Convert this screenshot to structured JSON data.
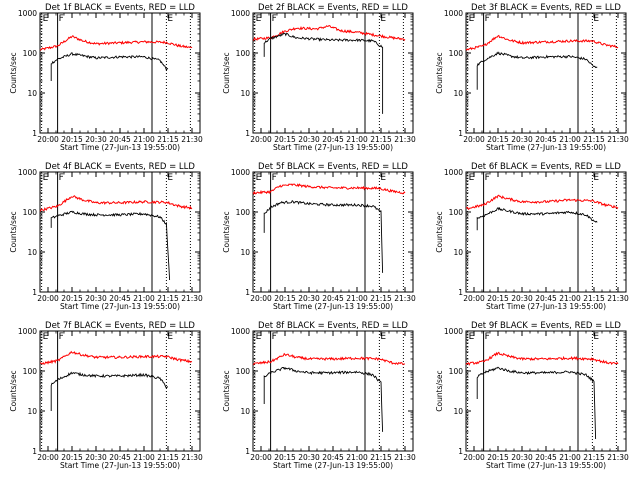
{
  "chart_data": [
    {
      "type": "line",
      "title": "Det 1f BLACK = Events, RED = LLD",
      "ylabel": "Counts/sec",
      "xlabel": "Start Time (27-Jun-13 19:55:00)",
      "xlim": [
        "19:55",
        "21:35"
      ],
      "ylim": [
        1,
        1000
      ],
      "yscale": "log",
      "y_ticks": [
        "1",
        "10",
        "100",
        "1000"
      ],
      "x_ticks": [
        "20:00",
        "20:15",
        "20:30",
        "20:45",
        "21:00",
        "21:15",
        "21:30"
      ],
      "markers": [
        {
          "time": "19:56",
          "type": "dotted",
          "label": "E"
        },
        {
          "time": "20:06",
          "type": "solid",
          "label": "F"
        },
        {
          "time": "21:05",
          "type": "solid",
          "label": ""
        },
        {
          "time": "21:14",
          "type": "dotted",
          "label": "E"
        },
        {
          "time": "21:29",
          "type": "dotted",
          "label": ""
        }
      ],
      "series": [
        {
          "name": "RED = LLD",
          "color": "#ff0000",
          "x": [
            "19:55",
            "20:06",
            "20:15",
            "20:22",
            "20:30",
            "20:45",
            "21:00",
            "21:14",
            "21:22",
            "21:30"
          ],
          "y": [
            120,
            150,
            260,
            200,
            170,
            180,
            190,
            185,
            150,
            135
          ]
        },
        {
          "name": "BLACK = Events",
          "color": "#000000",
          "x": [
            "20:02",
            "20:02",
            "20:06",
            "20:15",
            "20:22",
            "20:30",
            "20:45",
            "21:00",
            "21:10",
            "21:14",
            "21:15"
          ],
          "y": [
            20,
            55,
            70,
            95,
            85,
            75,
            80,
            80,
            65,
            40,
            40
          ]
        }
      ]
    },
    {
      "type": "line",
      "title": "Det 2f BLACK = Events, RED = LLD",
      "ylabel": "Counts/sec",
      "xlabel": "Start Time (27-Jun-13 19:55:00)",
      "xlim": [
        "19:55",
        "21:35"
      ],
      "ylim": [
        1,
        1000
      ],
      "yscale": "log",
      "y_ticks": [
        "1",
        "10",
        "100",
        "1000"
      ],
      "x_ticks": [
        "20:00",
        "20:15",
        "20:30",
        "20:45",
        "21:00",
        "21:15",
        "21:30"
      ],
      "markers": [
        {
          "time": "19:56",
          "type": "dotted",
          "label": "E"
        },
        {
          "time": "20:06",
          "type": "solid",
          "label": "F"
        },
        {
          "time": "21:05",
          "type": "solid",
          "label": ""
        },
        {
          "time": "21:14",
          "type": "dotted",
          "label": "E"
        },
        {
          "time": "21:29",
          "type": "dotted",
          "label": ""
        }
      ],
      "series": [
        {
          "name": "RED = LLD",
          "color": "#ff0000",
          "x": [
            "19:55",
            "20:06",
            "20:15",
            "20:22",
            "20:35",
            "20:42",
            "20:50",
            "21:00",
            "21:14",
            "21:22",
            "21:30"
          ],
          "y": [
            220,
            240,
            350,
            420,
            400,
            470,
            360,
            330,
            270,
            240,
            220
          ]
        },
        {
          "name": "BLACK = Events",
          "color": "#000000",
          "x": [
            "20:02",
            "20:02",
            "20:06",
            "20:15",
            "20:22",
            "20:35",
            "20:45",
            "21:00",
            "21:10",
            "21:16",
            "21:16"
          ],
          "y": [
            80,
            180,
            230,
            300,
            240,
            220,
            210,
            210,
            200,
            140,
            3
          ]
        }
      ]
    },
    {
      "type": "line",
      "title": "Det 3f BLACK = Events, RED = LLD",
      "ylabel": "Counts/sec",
      "xlabel": "Start Time (27-Jun-13 19:55:00)",
      "xlim": [
        "19:55",
        "21:35"
      ],
      "ylim": [
        1,
        1000
      ],
      "yscale": "log",
      "y_ticks": [
        "1",
        "10",
        "100",
        "1000"
      ],
      "x_ticks": [
        "20:00",
        "20:15",
        "20:30",
        "20:45",
        "21:00",
        "21:15",
        "21:30"
      ],
      "markers": [
        {
          "time": "19:56",
          "type": "dotted",
          "label": "E"
        },
        {
          "time": "20:06",
          "type": "solid",
          "label": "F"
        },
        {
          "time": "21:05",
          "type": "solid",
          "label": ""
        },
        {
          "time": "21:14",
          "type": "dotted",
          "label": "E"
        },
        {
          "time": "21:29",
          "type": "dotted",
          "label": ""
        }
      ],
      "series": [
        {
          "name": "RED = LLD",
          "color": "#ff0000",
          "x": [
            "19:55",
            "20:06",
            "20:15",
            "20:22",
            "20:30",
            "20:45",
            "21:00",
            "21:14",
            "21:22",
            "21:30"
          ],
          "y": [
            120,
            150,
            270,
            210,
            180,
            190,
            200,
            200,
            160,
            140
          ]
        },
        {
          "name": "BLACK = Events",
          "color": "#000000",
          "x": [
            "20:02",
            "20:02",
            "20:06",
            "20:15",
            "20:22",
            "20:30",
            "20:45",
            "21:00",
            "21:10",
            "21:15",
            "21:17"
          ],
          "y": [
            12,
            50,
            65,
            100,
            85,
            75,
            80,
            82,
            70,
            45,
            45
          ]
        }
      ]
    },
    {
      "type": "line",
      "title": "Det 4f BLACK = Events, RED = LLD",
      "ylabel": "Counts/sec",
      "xlabel": "Start Time (27-Jun-13 19:55:00)",
      "xlim": [
        "19:55",
        "21:35"
      ],
      "ylim": [
        1,
        1000
      ],
      "yscale": "log",
      "y_ticks": [
        "1",
        "10",
        "100",
        "1000"
      ],
      "x_ticks": [
        "20:00",
        "20:15",
        "20:30",
        "20:45",
        "21:00",
        "21:15",
        "21:30"
      ],
      "markers": [
        {
          "time": "19:56",
          "type": "dotted",
          "label": "E"
        },
        {
          "time": "20:06",
          "type": "solid",
          "label": "F"
        },
        {
          "time": "21:05",
          "type": "solid",
          "label": ""
        },
        {
          "time": "21:14",
          "type": "dotted",
          "label": "E"
        },
        {
          "time": "21:29",
          "type": "dotted",
          "label": ""
        }
      ],
      "series": [
        {
          "name": "RED = LLD",
          "color": "#ff0000",
          "x": [
            "19:55",
            "20:06",
            "20:15",
            "20:22",
            "20:30",
            "20:45",
            "21:00",
            "21:14",
            "21:22",
            "21:30"
          ],
          "y": [
            110,
            140,
            250,
            200,
            170,
            170,
            180,
            175,
            140,
            125
          ]
        },
        {
          "name": "BLACK = Events",
          "color": "#000000",
          "x": [
            "20:02",
            "20:02",
            "20:06",
            "20:15",
            "20:22",
            "20:30",
            "20:45",
            "21:00",
            "21:10",
            "21:14",
            "21:16"
          ],
          "y": [
            40,
            70,
            80,
            100,
            90,
            85,
            85,
            90,
            75,
            50,
            2
          ]
        }
      ]
    },
    {
      "type": "line",
      "title": "Det 5f BLACK = Events, RED = LLD",
      "ylabel": "Counts/sec",
      "xlabel": "Start Time (27-Jun-13 19:55:00)",
      "xlim": [
        "19:55",
        "21:35"
      ],
      "ylim": [
        1,
        1000
      ],
      "yscale": "log",
      "y_ticks": [
        "1",
        "10",
        "100",
        "1000"
      ],
      "x_ticks": [
        "20:00",
        "20:15",
        "20:30",
        "20:45",
        "21:00",
        "21:15",
        "21:30"
      ],
      "markers": [
        {
          "time": "19:56",
          "type": "dotted",
          "label": "E"
        },
        {
          "time": "20:06",
          "type": "solid",
          "label": "F"
        },
        {
          "time": "21:05",
          "type": "solid",
          "label": ""
        },
        {
          "time": "21:14",
          "type": "dotted",
          "label": "E"
        },
        {
          "time": "21:29",
          "type": "dotted",
          "label": ""
        }
      ],
      "series": [
        {
          "name": "RED = LLD",
          "color": "#ff0000",
          "x": [
            "19:55",
            "20:06",
            "20:12",
            "20:20",
            "20:30",
            "20:45",
            "21:00",
            "21:14",
            "21:22",
            "21:30"
          ],
          "y": [
            300,
            320,
            450,
            480,
            430,
            400,
            400,
            390,
            330,
            300
          ]
        },
        {
          "name": "BLACK = Events",
          "color": "#000000",
          "x": [
            "20:02",
            "20:02",
            "20:06",
            "20:12",
            "20:20",
            "20:30",
            "20:45",
            "21:00",
            "21:10",
            "21:15",
            "21:16"
          ],
          "y": [
            30,
            90,
            130,
            170,
            180,
            160,
            150,
            150,
            140,
            100,
            3
          ]
        }
      ]
    },
    {
      "type": "line",
      "title": "Det 6f BLACK = Events, RED = LLD",
      "ylabel": "Counts/sec",
      "xlabel": "Start Time (27-Jun-13 19:55:00)",
      "xlim": [
        "19:55",
        "21:35"
      ],
      "ylim": [
        1,
        1000
      ],
      "yscale": "log",
      "y_ticks": [
        "1",
        "10",
        "100",
        "1000"
      ],
      "x_ticks": [
        "20:00",
        "20:15",
        "20:30",
        "20:45",
        "21:00",
        "21:15",
        "21:30"
      ],
      "markers": [
        {
          "time": "19:56",
          "type": "dotted",
          "label": "E"
        },
        {
          "time": "20:06",
          "type": "solid",
          "label": "F"
        },
        {
          "time": "21:05",
          "type": "solid",
          "label": ""
        },
        {
          "time": "21:14",
          "type": "dotted",
          "label": "E"
        },
        {
          "time": "21:29",
          "type": "dotted",
          "label": ""
        }
      ],
      "series": [
        {
          "name": "RED = LLD",
          "color": "#ff0000",
          "x": [
            "19:55",
            "20:06",
            "20:15",
            "20:22",
            "20:30",
            "20:45",
            "21:00",
            "21:14",
            "21:22",
            "21:30"
          ],
          "y": [
            120,
            150,
            250,
            210,
            180,
            180,
            200,
            190,
            150,
            130
          ]
        },
        {
          "name": "BLACK = Events",
          "color": "#000000",
          "x": [
            "20:02",
            "20:02",
            "20:06",
            "20:15",
            "20:22",
            "20:30",
            "20:45",
            "21:00",
            "21:10",
            "21:15",
            "21:17"
          ],
          "y": [
            35,
            70,
            80,
            120,
            105,
            90,
            90,
            100,
            85,
            60,
            55
          ]
        }
      ]
    },
    {
      "type": "line",
      "title": "Det 7f BLACK = Events, RED = LLD",
      "ylabel": "Counts/sec",
      "xlabel": "Start Time (27-Jun-13 19:55:00)",
      "xlim": [
        "19:55",
        "21:35"
      ],
      "ylim": [
        1,
        1000
      ],
      "yscale": "log",
      "y_ticks": [
        "1",
        "10",
        "100",
        "1000"
      ],
      "x_ticks": [
        "20:00",
        "20:15",
        "20:30",
        "20:45",
        "21:00",
        "21:15",
        "21:30"
      ],
      "markers": [
        {
          "time": "19:56",
          "type": "dotted",
          "label": "E"
        },
        {
          "time": "20:06",
          "type": "solid",
          "label": "F"
        },
        {
          "time": "21:05",
          "type": "solid",
          "label": ""
        },
        {
          "time": "21:14",
          "type": "dotted",
          "label": "E"
        },
        {
          "time": "21:29",
          "type": "dotted",
          "label": ""
        }
      ],
      "series": [
        {
          "name": "RED = LLD",
          "color": "#ff0000",
          "x": [
            "19:55",
            "20:06",
            "20:15",
            "20:22",
            "20:30",
            "20:45",
            "21:00",
            "21:14",
            "21:22",
            "21:30"
          ],
          "y": [
            150,
            180,
            300,
            250,
            220,
            220,
            230,
            230,
            190,
            170
          ]
        },
        {
          "name": "BLACK = Events",
          "color": "#000000",
          "x": [
            "20:02",
            "20:02",
            "20:06",
            "20:15",
            "20:22",
            "20:30",
            "20:45",
            "21:00",
            "21:10",
            "21:14",
            "21:15"
          ],
          "y": [
            10,
            45,
            60,
            90,
            80,
            75,
            75,
            80,
            65,
            40,
            40
          ]
        }
      ]
    },
    {
      "type": "line",
      "title": "Det 8f BLACK = Events, RED = LLD",
      "ylabel": "Counts/sec",
      "xlabel": "Start Time (27-Jun-13 19:55:00)",
      "xlim": [
        "19:55",
        "21:35"
      ],
      "ylim": [
        1,
        1000
      ],
      "yscale": "log",
      "y_ticks": [
        "1",
        "10",
        "100",
        "1000"
      ],
      "x_ticks": [
        "20:00",
        "20:15",
        "20:30",
        "20:45",
        "21:00",
        "21:15",
        "21:30"
      ],
      "markers": [
        {
          "time": "19:56",
          "type": "dotted",
          "label": "E"
        },
        {
          "time": "20:06",
          "type": "solid",
          "label": "F"
        },
        {
          "time": "21:05",
          "type": "solid",
          "label": ""
        },
        {
          "time": "21:14",
          "type": "dotted",
          "label": "E"
        },
        {
          "time": "21:29",
          "type": "dotted",
          "label": ""
        }
      ],
      "series": [
        {
          "name": "RED = LLD",
          "color": "#ff0000",
          "x": [
            "19:55",
            "20:06",
            "20:15",
            "20:22",
            "20:30",
            "20:45",
            "21:00",
            "21:14",
            "21:22",
            "21:30"
          ],
          "y": [
            150,
            170,
            260,
            220,
            200,
            200,
            210,
            200,
            160,
            150
          ]
        },
        {
          "name": "BLACK = Events",
          "color": "#000000",
          "x": [
            "20:02",
            "20:02",
            "20:06",
            "20:15",
            "20:22",
            "20:30",
            "20:45",
            "21:00",
            "21:10",
            "21:15",
            "21:16"
          ],
          "y": [
            15,
            70,
            90,
            120,
            100,
            90,
            90,
            95,
            80,
            50,
            3
          ]
        }
      ]
    },
    {
      "type": "line",
      "title": "Det 9f BLACK = Events, RED = LLD",
      "ylabel": "Counts/sec",
      "xlabel": "Start Time (27-Jun-13 19:55:00)",
      "xlim": [
        "19:55",
        "21:35"
      ],
      "ylim": [
        1,
        1000
      ],
      "yscale": "log",
      "y_ticks": [
        "1",
        "10",
        "100",
        "1000"
      ],
      "x_ticks": [
        "20:00",
        "20:15",
        "20:30",
        "20:45",
        "21:00",
        "21:15",
        "21:30"
      ],
      "markers": [
        {
          "time": "19:56",
          "type": "dotted",
          "label": "E"
        },
        {
          "time": "20:06",
          "type": "solid",
          "label": "F"
        },
        {
          "time": "21:05",
          "type": "solid",
          "label": ""
        },
        {
          "time": "21:14",
          "type": "dotted",
          "label": "E"
        },
        {
          "time": "21:29",
          "type": "dotted",
          "label": ""
        }
      ],
      "series": [
        {
          "name": "RED = LLD",
          "color": "#ff0000",
          "x": [
            "19:55",
            "20:06",
            "20:15",
            "20:22",
            "20:30",
            "20:45",
            "21:00",
            "21:14",
            "21:22",
            "21:30"
          ],
          "y": [
            150,
            170,
            280,
            230,
            200,
            200,
            210,
            200,
            165,
            150
          ]
        },
        {
          "name": "BLACK = Events",
          "color": "#000000",
          "x": [
            "20:02",
            "20:02",
            "20:06",
            "20:15",
            "20:22",
            "20:30",
            "20:45",
            "21:00",
            "21:10",
            "21:15",
            "21:16"
          ],
          "y": [
            20,
            70,
            90,
            120,
            100,
            90,
            90,
            95,
            80,
            55,
            2
          ]
        }
      ]
    }
  ]
}
